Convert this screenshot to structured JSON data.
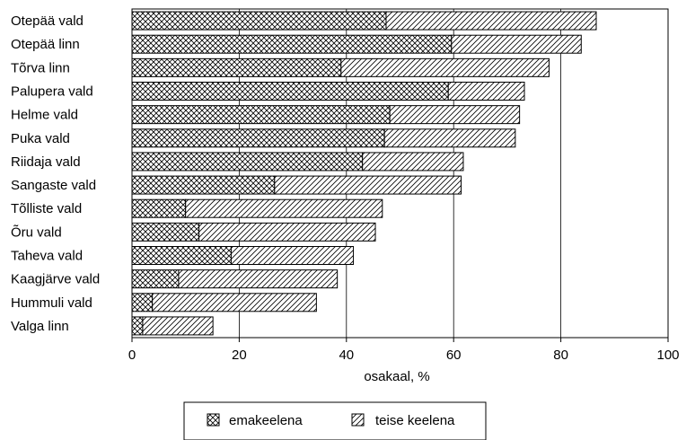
{
  "chart_data": {
    "type": "bar",
    "orientation": "horizontal",
    "stacked": true,
    "categories": [
      "Otepää vald",
      "Otepää linn",
      "Tõrva linn",
      "Palupera vald",
      "Helme vald",
      "Puka vald",
      "Riidaja vald",
      "Sangaste vald",
      "Tõlliste vald",
      "Õru vald",
      "Taheva vald",
      "Kaagjärve vald",
      "Hummuli vald",
      "Valga linn"
    ],
    "series": [
      {
        "name": "emakeelena",
        "pattern": "crosshatch",
        "values": [
          47.4,
          59.6,
          39.0,
          59.0,
          48.1,
          47.1,
          43.0,
          26.6,
          10.0,
          12.5,
          18.5,
          8.7,
          3.8,
          2.0
        ]
      },
      {
        "name": "teise keelena",
        "pattern": "diagonal",
        "values": [
          39.2,
          24.2,
          38.8,
          14.2,
          24.2,
          24.4,
          18.8,
          34.8,
          36.7,
          32.9,
          22.8,
          29.6,
          30.6,
          13.1
        ]
      }
    ],
    "xlabel": "osakaal, %",
    "ylabel": "",
    "xlim": [
      0,
      100
    ],
    "xticks": [
      0,
      20,
      40,
      60,
      80,
      100
    ],
    "grid": "vertical",
    "legend_position": "bottom",
    "colors": {
      "bar_fill": "#ffffff",
      "pattern": "#000000",
      "gridline": "#000000"
    }
  }
}
